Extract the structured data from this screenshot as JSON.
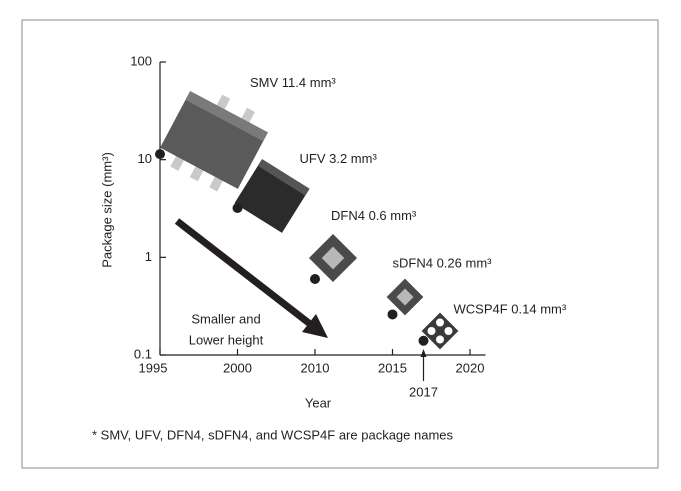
{
  "chart_data": {
    "type": "scatter",
    "x_label": "Year",
    "y_label": "Package size (mm³)",
    "x": [
      1995,
      2000,
      2010,
      2015,
      2017
    ],
    "series": [
      {
        "names": [
          "SMV",
          "UFV",
          "DFN4",
          "sDFN4",
          "WCSP4F"
        ],
        "color": "#231f20",
        "values": [
          11.4,
          3.2,
          0.6,
          0.26,
          0.14
        ],
        "value_labels": [
          "11.4 mm³",
          "3.2 mm³",
          "0.6 mm³",
          "0.26 mm³",
          "0.14 mm³"
        ]
      }
    ],
    "xlim": [
      1995,
      2021
    ],
    "xticks": [
      1995,
      2000,
      2010,
      2015,
      2020
    ],
    "ylim": [
      0.1,
      100
    ],
    "yticks": [
      0.1,
      1,
      10,
      100
    ],
    "log_y": true,
    "x_annotation": 2017,
    "annotations": [
      "Smaller and",
      "Lower height"
    ],
    "footnote": "* SMV,  UFV,  DFN4,  sDFN4,  and WCSP4F are package names"
  }
}
